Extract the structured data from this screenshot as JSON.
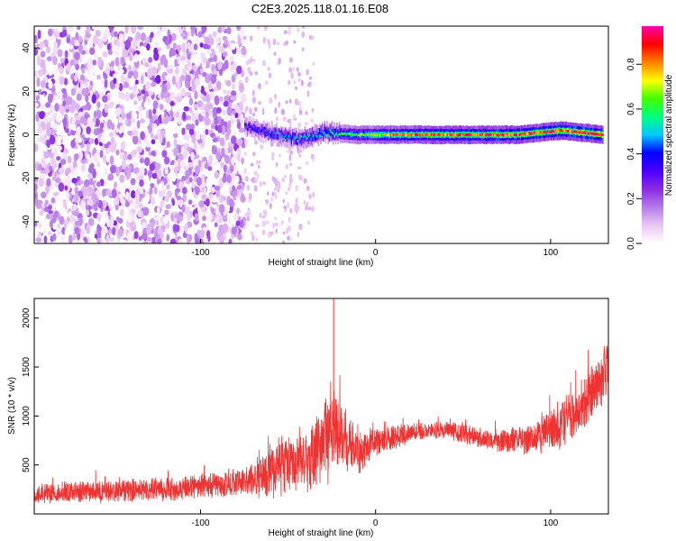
{
  "title": "C2E3.2025.118.01.16.E08",
  "colors": {
    "snr_line": "#ee3333",
    "colorbar": [
      "#ffffff",
      "#e9c7f2",
      "#b57be8",
      "#8a2be2",
      "#4b00ff",
      "#0000ff",
      "#00c8ff",
      "#00ff80",
      "#40ff00",
      "#ffff00",
      "#ff8000",
      "#ff0000",
      "#ff00aa"
    ]
  },
  "chart_data": [
    {
      "type": "heatmap",
      "title": "C2E3.2025.118.01.16.E08",
      "xlabel": "Height of straight line (km)",
      "ylabel": "Frequency (Hz)",
      "xlim": [
        -195,
        133
      ],
      "ylim": [
        -50,
        50
      ],
      "x_ticks": [
        -100,
        0,
        100
      ],
      "y_ticks": [
        -40,
        -20,
        0,
        20,
        40
      ],
      "colorbar": {
        "label": "Normalized spectral amplitude",
        "range": [
          0,
          0.97
        ],
        "ticks": [
          0.0,
          0.2,
          0.4,
          0.6,
          0.8
        ]
      },
      "ridge": {
        "description_x_start": -75,
        "frequency_hz": 0,
        "band_points": [
          {
            "x": -75,
            "f": 4,
            "amp": 0.35
          },
          {
            "x": -60,
            "f": 1,
            "amp": 0.45
          },
          {
            "x": -45,
            "f": -2,
            "amp": 0.5
          },
          {
            "x": -30,
            "f": 1,
            "amp": 0.55
          },
          {
            "x": -10,
            "f": 0,
            "amp": 0.65
          },
          {
            "x": 10,
            "f": 0,
            "amp": 0.8
          },
          {
            "x": 40,
            "f": 0,
            "amp": 0.85
          },
          {
            "x": 80,
            "f": 0,
            "amp": 0.9
          },
          {
            "x": 106,
            "f": 2,
            "amp": 0.9
          },
          {
            "x": 130,
            "f": 0,
            "amp": 0.95
          }
        ]
      },
      "noise_region": {
        "x_from": -195,
        "x_to": -75,
        "level": 0.15
      },
      "faint_region": {
        "x_from": -75,
        "x_to": -35,
        "level": 0.05
      }
    },
    {
      "type": "line",
      "xlabel": "Height of straight line (km)",
      "ylabel": "SNR (10 * v/v)",
      "xlim": [
        -195,
        133
      ],
      "ylim": [
        0,
        2200
      ],
      "x_ticks": [
        -100,
        0,
        100
      ],
      "y_ticks": [
        500,
        1000,
        1500,
        2000
      ],
      "envelope": [
        {
          "x": -195,
          "mean": 210,
          "spread": 110
        },
        {
          "x": -150,
          "mean": 230,
          "spread": 130
        },
        {
          "x": -100,
          "mean": 270,
          "spread": 140
        },
        {
          "x": -75,
          "mean": 330,
          "spread": 170
        },
        {
          "x": -60,
          "mean": 430,
          "spread": 300
        },
        {
          "x": -50,
          "mean": 550,
          "spread": 350
        },
        {
          "x": -40,
          "mean": 500,
          "spread": 300
        },
        {
          "x": -28,
          "mean": 800,
          "spread": 550
        },
        {
          "x": -22,
          "mean": 850,
          "spread": 450
        },
        {
          "x": -10,
          "mean": 650,
          "spread": 280
        },
        {
          "x": 0,
          "mean": 720,
          "spread": 170
        },
        {
          "x": 20,
          "mean": 830,
          "spread": 110
        },
        {
          "x": 40,
          "mean": 860,
          "spread": 100
        },
        {
          "x": 55,
          "mean": 800,
          "spread": 110
        },
        {
          "x": 70,
          "mean": 740,
          "spread": 130
        },
        {
          "x": 90,
          "mean": 760,
          "spread": 180
        },
        {
          "x": 105,
          "mean": 900,
          "spread": 250
        },
        {
          "x": 120,
          "mean": 1150,
          "spread": 300
        },
        {
          "x": 133,
          "mean": 1500,
          "spread": 320
        }
      ],
      "peak": {
        "x": -24,
        "y": 2200
      }
    }
  ]
}
